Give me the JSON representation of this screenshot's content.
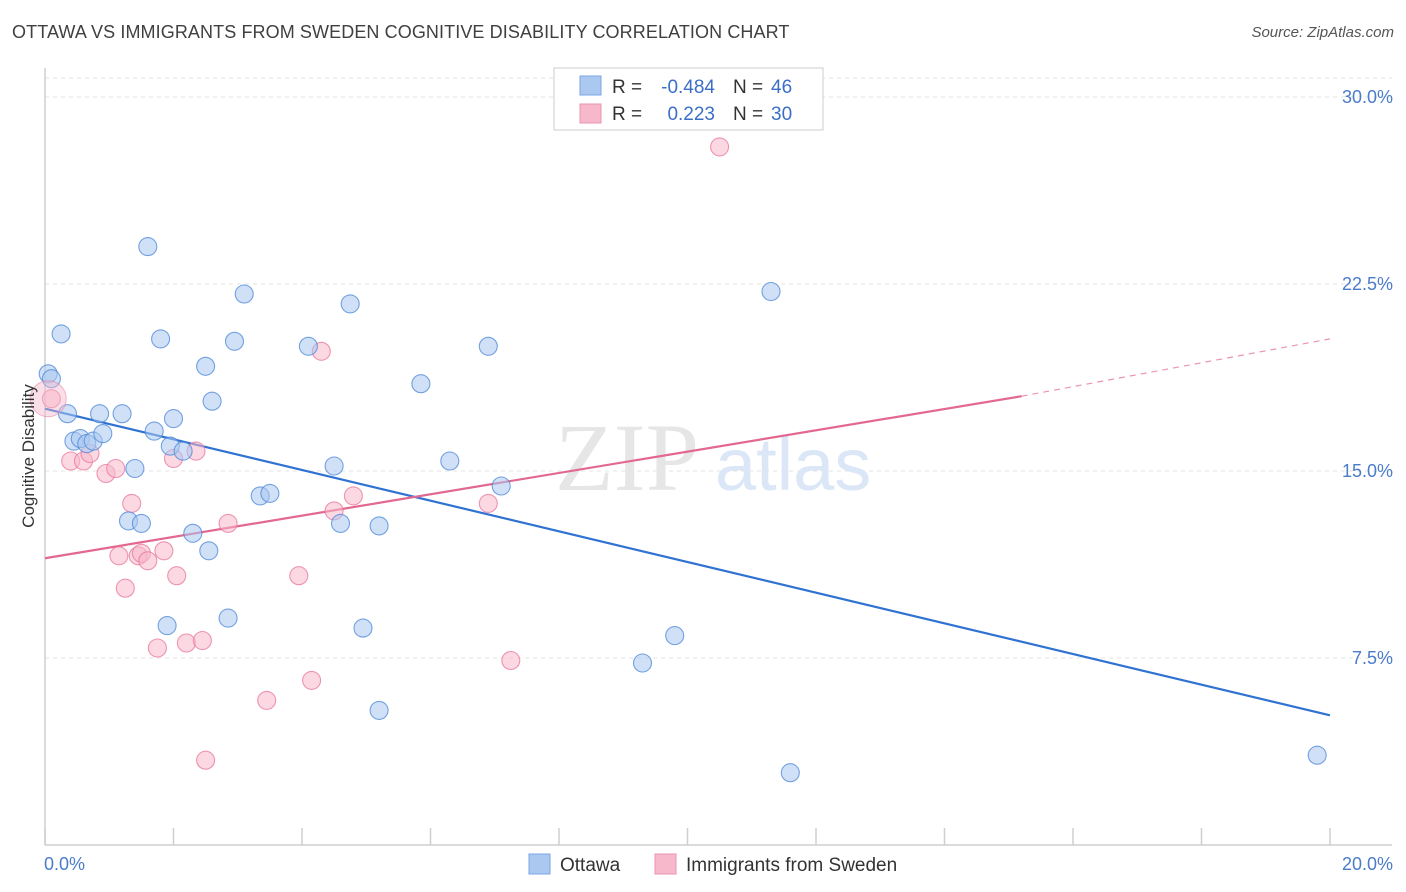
{
  "header": {
    "title": "OTTAWA VS IMMIGRANTS FROM SWEDEN COGNITIVE DISABILITY CORRELATION CHART",
    "source": "Source: ZipAtlas.com"
  },
  "watermark": {
    "zip": "ZIP",
    "atlas": "atlas"
  },
  "legend": {
    "rows": [
      {
        "r_label": "R =",
        "r_value": "-0.484",
        "n_label": "N =",
        "n_value": "46",
        "color": "#aac8f0"
      },
      {
        "r_label": "R =",
        "r_value": "0.223",
        "n_label": "N =",
        "n_value": "30",
        "color": "#f7b8cb"
      }
    ]
  },
  "bottom_legend": {
    "items": [
      {
        "label": "Ottawa",
        "color": "#aac8f0"
      },
      {
        "label": "Immigrants from Sweden",
        "color": "#f7b8cb"
      }
    ]
  },
  "chart_data": {
    "type": "scatter",
    "title": "OTTAWA VS IMMIGRANTS FROM SWEDEN COGNITIVE DISABILITY CORRELATION CHART",
    "xlabel": "",
    "ylabel": "Cognitive Disability",
    "xlim": [
      0,
      20
    ],
    "ylim": [
      0,
      30
    ],
    "x_tick_labels": [
      "0.0%",
      "20.0%"
    ],
    "y_ticks": [
      7.5,
      15.0,
      22.5,
      30.0
    ],
    "y_tick_labels": [
      "7.5%",
      "15.0%",
      "22.5%",
      "30.0%"
    ],
    "grid": true,
    "legend_position": "top-center",
    "series": [
      {
        "name": "Ottawa",
        "color": "#4a86d8",
        "fill": "#aac8f0",
        "points": [
          [
            0.05,
            18.9
          ],
          [
            0.1,
            18.7
          ],
          [
            0.25,
            20.5
          ],
          [
            0.35,
            17.3
          ],
          [
            0.45,
            16.2
          ],
          [
            0.55,
            16.3
          ],
          [
            0.65,
            16.1
          ],
          [
            0.75,
            16.2
          ],
          [
            0.85,
            17.3
          ],
          [
            0.9,
            16.5
          ],
          [
            1.2,
            17.3
          ],
          [
            1.3,
            13.0
          ],
          [
            1.5,
            12.9
          ],
          [
            1.4,
            15.1
          ],
          [
            1.6,
            24.0
          ],
          [
            1.7,
            16.6
          ],
          [
            1.8,
            20.3
          ],
          [
            1.9,
            8.8
          ],
          [
            1.95,
            16.0
          ],
          [
            2.0,
            17.1
          ],
          [
            2.15,
            15.8
          ],
          [
            2.3,
            12.5
          ],
          [
            2.5,
            19.2
          ],
          [
            2.55,
            11.8
          ],
          [
            2.6,
            17.8
          ],
          [
            2.85,
            9.1
          ],
          [
            2.95,
            20.2
          ],
          [
            3.1,
            22.1
          ],
          [
            3.35,
            14.0
          ],
          [
            3.5,
            14.1
          ],
          [
            4.1,
            20.0
          ],
          [
            4.5,
            15.2
          ],
          [
            4.6,
            12.9
          ],
          [
            4.75,
            21.7
          ],
          [
            4.95,
            8.7
          ],
          [
            5.2,
            5.4
          ],
          [
            5.2,
            12.8
          ],
          [
            5.85,
            18.5
          ],
          [
            6.3,
            15.4
          ],
          [
            6.9,
            20.0
          ],
          [
            7.1,
            14.4
          ],
          [
            9.3,
            7.3
          ],
          [
            9.8,
            8.4
          ],
          [
            11.3,
            22.2
          ],
          [
            11.6,
            2.9
          ],
          [
            19.8,
            3.6
          ]
        ]
      },
      {
        "name": "Immigrants from Sweden",
        "color": "#e8759b",
        "fill": "#f7b8cb",
        "points": [
          [
            0.1,
            17.9
          ],
          [
            0.4,
            15.4
          ],
          [
            0.6,
            15.4
          ],
          [
            0.7,
            15.7
          ],
          [
            0.95,
            14.9
          ],
          [
            1.1,
            15.1
          ],
          [
            1.15,
            11.6
          ],
          [
            1.25,
            10.3
          ],
          [
            1.35,
            13.7
          ],
          [
            1.45,
            11.6
          ],
          [
            1.5,
            11.7
          ],
          [
            1.6,
            11.4
          ],
          [
            1.75,
            7.9
          ],
          [
            1.85,
            11.8
          ],
          [
            2.0,
            15.5
          ],
          [
            2.05,
            10.8
          ],
          [
            2.2,
            8.1
          ],
          [
            2.35,
            15.8
          ],
          [
            2.45,
            8.2
          ],
          [
            2.5,
            3.4
          ],
          [
            2.85,
            12.9
          ],
          [
            3.45,
            5.8
          ],
          [
            3.95,
            10.8
          ],
          [
            4.15,
            6.6
          ],
          [
            4.3,
            19.8
          ],
          [
            4.5,
            13.4
          ],
          [
            4.8,
            14.0
          ],
          [
            6.9,
            13.7
          ],
          [
            7.25,
            7.4
          ],
          [
            10.5,
            28.0
          ]
        ]
      }
    ],
    "trend_lines": [
      {
        "series": "Ottawa",
        "x1": 0,
        "y1": 17.5,
        "x2": 20,
        "y2": 5.2,
        "dashed_extension": false
      },
      {
        "series": "Immigrants from Sweden",
        "x1": 0,
        "y1": 11.5,
        "x2": 15.2,
        "y2": 18.0,
        "dashed_to_x": 20,
        "dashed_to_y": 20.3
      }
    ]
  }
}
